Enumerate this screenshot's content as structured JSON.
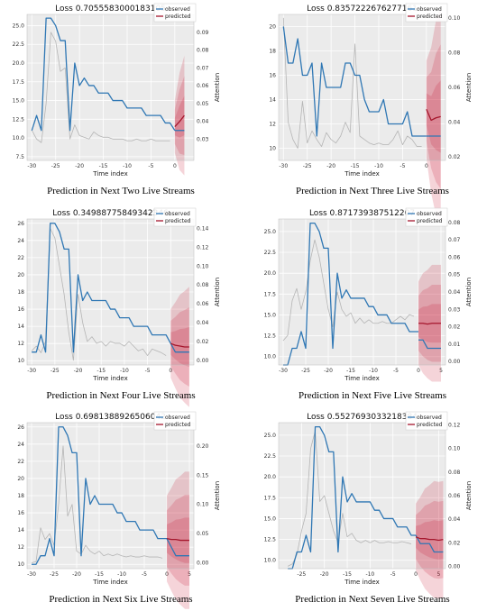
{
  "chart_data": [
    {
      "type": "line",
      "title": "Loss 0.7055583000183105",
      "caption": "Prediction in Next Two Live Streams",
      "xlabel": "Time index",
      "y2label": "Attention",
      "xlim": [
        -31,
        4
      ],
      "ylim": [
        7,
        26.5
      ],
      "y2lim": [
        0.018,
        0.1
      ],
      "xticks": [
        -30,
        -25,
        -20,
        -15,
        -10,
        -5,
        0
      ],
      "yticks": [
        7.5,
        10.0,
        12.5,
        15.0,
        17.5,
        20.0,
        22.5,
        25.0
      ],
      "y2ticks": [
        0.03,
        0.04,
        0.05,
        0.06,
        0.07,
        0.08,
        0.09
      ],
      "legend": [
        "observed",
        "predicted"
      ],
      "observed": {
        "x": [
          -30,
          -29,
          -28,
          -27,
          -26,
          -25,
          -24,
          -23,
          -22,
          -21,
          -20,
          -19,
          -18,
          -17,
          -16,
          -15,
          -14,
          -13,
          -12,
          -11,
          -10,
          -9,
          -8,
          -7,
          -6,
          -5,
          -4,
          -3,
          -2,
          -1,
          0
        ],
        "y": [
          11,
          13,
          11,
          26,
          26,
          25,
          23,
          23,
          11,
          20,
          17,
          18,
          17,
          17,
          16,
          16,
          16,
          15,
          15,
          15,
          14,
          14,
          14,
          14,
          13,
          13,
          13,
          13,
          12,
          12,
          11
        ]
      },
      "attention": {
        "x": [
          -30,
          -29,
          -28,
          -27,
          -26,
          -25,
          -24,
          -23,
          -22,
          -21,
          -20,
          -19,
          -18,
          -17,
          -16,
          -15,
          -14,
          -13,
          -12,
          -11,
          -10,
          -9,
          -8,
          -7,
          -6,
          -5,
          -4,
          -3,
          -2,
          -1
        ],
        "y": [
          0.035,
          0.03,
          0.028,
          0.05,
          0.09,
          0.085,
          0.068,
          0.07,
          0.03,
          0.038,
          0.032,
          0.031,
          0.03,
          0.034,
          0.032,
          0.031,
          0.031,
          0.03,
          0.03,
          0.03,
          0.029,
          0.029,
          0.03,
          0.029,
          0.029,
          0.03,
          0.029,
          0.029,
          0.029,
          0.029
        ]
      },
      "observed_future": {
        "x": [
          0,
          1,
          2
        ],
        "y": [
          11,
          11,
          11
        ]
      },
      "predicted": {
        "x": [
          0,
          1,
          2
        ],
        "y": [
          11.5,
          12.2,
          13
        ]
      },
      "band_width": [
        3.5,
        6.5,
        8
      ]
    },
    {
      "type": "line",
      "title": "Loss 0.8357222676277161",
      "caption": "Prediction in Next Three Live Streams",
      "xlabel": "Time index",
      "y2label": "Attention",
      "xlim": [
        -31,
        4
      ],
      "ylim": [
        9,
        21
      ],
      "y2lim": [
        0.018,
        0.102
      ],
      "xticks": [
        -30,
        -25,
        -20,
        -15,
        -10,
        -5,
        0
      ],
      "yticks": [
        10,
        12,
        14,
        16,
        18,
        20
      ],
      "y2ticks": [
        0.02,
        0.04,
        0.06,
        0.08,
        0.1
      ],
      "legend": [
        "observed",
        "predicted"
      ],
      "observed": {
        "x": [
          -30,
          -29,
          -28,
          -27,
          -26,
          -25,
          -24,
          -23,
          -22,
          -21,
          -20,
          -19,
          -18,
          -17,
          -16,
          -15,
          -14,
          -13,
          -12,
          -11,
          -10,
          -9,
          -8,
          -7,
          -6,
          -5,
          -4,
          -3,
          -2,
          -1,
          0
        ],
        "y": [
          20,
          17,
          17,
          19,
          16,
          16,
          17,
          11,
          17,
          15,
          15,
          15,
          15,
          17,
          17,
          16,
          16,
          14,
          13,
          13,
          13,
          14,
          12,
          12,
          12,
          12,
          13,
          11,
          11,
          11,
          11
        ]
      },
      "attention": {
        "x": [
          -30,
          -29,
          -28,
          -27,
          -26,
          -25,
          -24,
          -23,
          -22,
          -21,
          -20,
          -19,
          -18,
          -17,
          -16,
          -15,
          -14,
          -13,
          -12,
          -11,
          -10,
          -9,
          -8,
          -7,
          -6,
          -5,
          -4,
          -3,
          -2,
          -1
        ],
        "y": [
          0.1,
          0.04,
          0.03,
          0.025,
          0.052,
          0.028,
          0.035,
          0.03,
          0.026,
          0.034,
          0.03,
          0.028,
          0.032,
          0.04,
          0.034,
          0.085,
          0.032,
          0.03,
          0.028,
          0.027,
          0.028,
          0.027,
          0.027,
          0.03,
          0.035,
          0.027,
          0.032,
          0.03,
          0.026,
          0.026
        ]
      },
      "observed_future": {
        "x": [
          0,
          1,
          2,
          3
        ],
        "y": [
          11,
          11,
          11,
          11
        ]
      },
      "predicted": {
        "x": [
          0,
          1,
          2,
          3
        ],
        "y": [
          13.2,
          12.3,
          12.5,
          12.6
        ]
      },
      "band_width": [
        4,
        6,
        8,
        9
      ]
    },
    {
      "type": "line",
      "title": "Loss 0.34988775849342346",
      "caption": "Prediction in Next Four Live Streams",
      "xlabel": "Time index",
      "y2label": "Attention",
      "xlim": [
        -31,
        5
      ],
      "ylim": [
        9.5,
        26.5
      ],
      "y2lim": [
        -0.005,
        0.15
      ],
      "xticks": [
        -30,
        -25,
        -20,
        -15,
        -10,
        -5,
        0
      ],
      "yticks": [
        10,
        12,
        14,
        16,
        18,
        20,
        22,
        24,
        26
      ],
      "y2ticks": [
        0.0,
        0.02,
        0.04,
        0.06,
        0.08,
        0.1,
        0.12,
        0.14
      ],
      "legend": [
        "observed",
        "predicted"
      ],
      "observed": {
        "x": [
          -30,
          -29,
          -28,
          -27,
          -26,
          -25,
          -24,
          -23,
          -22,
          -21,
          -20,
          -19,
          -18,
          -17,
          -16,
          -15,
          -14,
          -13,
          -12,
          -11,
          -10,
          -9,
          -8,
          -7,
          -6,
          -5,
          -4,
          -3,
          -2,
          -1,
          0
        ],
        "y": [
          11,
          11,
          13,
          11,
          26,
          26,
          25,
          23,
          23,
          11,
          20,
          17,
          18,
          17,
          17,
          17,
          17,
          16,
          16,
          15,
          15,
          15,
          14,
          14,
          14,
          14,
          13,
          13,
          13,
          13,
          12
        ]
      },
      "attention": {
        "x": [
          -30,
          -29,
          -28,
          -27,
          -26,
          -25,
          -24,
          -23,
          -22,
          -21,
          -20,
          -19,
          -18,
          -17,
          -16,
          -15,
          -14,
          -13,
          -12,
          -11,
          -10,
          -9,
          -8,
          -7,
          -6,
          -5,
          -4,
          -3,
          -2,
          -1
        ],
        "y": [
          0.01,
          0.015,
          0.008,
          0.02,
          0.14,
          0.13,
          0.1,
          0.07,
          0.03,
          0.0,
          0.07,
          0.04,
          0.02,
          0.025,
          0.018,
          0.02,
          0.015,
          0.02,
          0.018,
          0.018,
          0.015,
          0.02,
          0.015,
          0.01,
          0.012,
          0.005,
          0.012,
          0.01,
          0.008,
          0.005
        ]
      },
      "observed_future": {
        "x": [
          0,
          1,
          2,
          3,
          4
        ],
        "y": [
          12,
          11,
          11,
          11,
          11
        ]
      },
      "predicted": {
        "x": [
          0,
          1,
          2,
          3,
          4
        ],
        "y": [
          12,
          11.8,
          11.7,
          11.6,
          11.6
        ]
      },
      "band_width": [
        4,
        5,
        6,
        6.5,
        7
      ]
    },
    {
      "type": "line",
      "title": "Loss 0.871739387512207",
      "caption": "Prediction in Next Five Live Streams",
      "xlabel": "Time index",
      "y2label": "Attention",
      "xlim": [
        -31,
        6
      ],
      "ylim": [
        9,
        26.5
      ],
      "y2lim": [
        -0.002,
        0.082
      ],
      "xticks": [
        -30,
        -25,
        -20,
        -15,
        -10,
        -5,
        0,
        5
      ],
      "yticks": [
        10.0,
        12.5,
        15.0,
        17.5,
        20.0,
        22.5,
        25.0
      ],
      "y2ticks": [
        0.0,
        0.01,
        0.02,
        0.03,
        0.04,
        0.05,
        0.06,
        0.07,
        0.08
      ],
      "legend": [
        "observed",
        "predicted"
      ],
      "observed": {
        "x": [
          -30,
          -29,
          -28,
          -27,
          -26,
          -25,
          -24,
          -23,
          -22,
          -21,
          -20,
          -19,
          -18,
          -17,
          -16,
          -15,
          -14,
          -13,
          -12,
          -11,
          -10,
          -9,
          -8,
          -7,
          -6,
          -5,
          -4,
          -3,
          -2,
          -1,
          0
        ],
        "y": [
          9,
          9,
          11,
          11,
          13,
          11,
          26,
          26,
          25,
          23,
          23,
          11,
          20,
          17,
          18,
          17,
          17,
          17,
          17,
          16,
          16,
          15,
          15,
          15,
          14,
          14,
          14,
          14,
          13,
          13,
          13
        ]
      },
      "attention": {
        "x": [
          -30,
          -29,
          -28,
          -27,
          -26,
          -25,
          -24,
          -23,
          -22,
          -21,
          -20,
          -19,
          -18,
          -17,
          -16,
          -15,
          -14,
          -13,
          -12,
          -11,
          -10,
          -9,
          -8,
          -7,
          -6,
          -5,
          -4,
          -3,
          -2,
          -1
        ],
        "y": [
          0.012,
          0.015,
          0.035,
          0.042,
          0.03,
          0.04,
          0.058,
          0.07,
          0.06,
          0.045,
          0.03,
          0.02,
          0.04,
          0.03,
          0.026,
          0.028,
          0.022,
          0.025,
          0.022,
          0.024,
          0.022,
          0.022,
          0.023,
          0.022,
          0.022,
          0.024,
          0.026,
          0.024,
          0.027,
          0.026
        ]
      },
      "observed_future": {
        "x": [
          0,
          1,
          2,
          3,
          4,
          5
        ],
        "y": [
          12,
          12,
          11,
          11,
          11,
          11
        ]
      },
      "predicted": {
        "x": [
          0,
          1,
          2,
          3,
          4,
          5
        ],
        "y": [
          14,
          14,
          13.9,
          14,
          14,
          14
        ]
      },
      "band_width": [
        5,
        6,
        6.5,
        7,
        7,
        7
      ]
    },
    {
      "type": "line",
      "title": "Loss 0.6981388926506042",
      "caption": "Prediction in Next Six Live Streams",
      "xlabel": "Time index",
      "y2label": "Attention",
      "xlim": [
        -31,
        6
      ],
      "ylim": [
        9.5,
        26.5
      ],
      "y2lim": [
        -0.01,
        0.24
      ],
      "xticks": [
        -30,
        -25,
        -20,
        -15,
        -10,
        -5,
        0,
        5
      ],
      "yticks": [
        10,
        12,
        14,
        16,
        18,
        20,
        22,
        24,
        26
      ],
      "y2ticks": [
        0.0,
        0.05,
        0.1,
        0.15,
        0.2
      ],
      "legend": [
        "observed",
        "predicted"
      ],
      "observed": {
        "x": [
          -30,
          -29,
          -28,
          -27,
          -26,
          -25,
          -24,
          -23,
          -22,
          -21,
          -20,
          -19,
          -18,
          -17,
          -16,
          -15,
          -14,
          -13,
          -12,
          -11,
          -10,
          -9,
          -8,
          -7,
          -6,
          -5,
          -4,
          -3,
          -2,
          -1,
          0
        ],
        "y": [
          10,
          10,
          11,
          11,
          13,
          11,
          26,
          26,
          25,
          23,
          23,
          11,
          20,
          17,
          18,
          17,
          17,
          17,
          17,
          16,
          16,
          15,
          15,
          15,
          14,
          14,
          14,
          14,
          13,
          13,
          13
        ]
      },
      "attention": {
        "x": [
          -30,
          -29,
          -28,
          -27,
          -26,
          -25,
          -24,
          -23,
          -22,
          -21,
          -20,
          -19,
          -18,
          -17,
          -16,
          -15,
          -14,
          -13,
          -12,
          -11,
          -10,
          -9,
          -8,
          -7,
          -6,
          -5,
          -4,
          -3,
          -2,
          -1
        ],
        "y": [
          0.0,
          0.002,
          0.06,
          0.04,
          0.05,
          0.03,
          0.1,
          0.2,
          0.08,
          0.1,
          0.02,
          0.015,
          0.03,
          0.02,
          0.015,
          0.02,
          0.012,
          0.015,
          0.012,
          0.015,
          0.012,
          0.01,
          0.012,
          0.01,
          0.01,
          0.012,
          0.01,
          0.01,
          0.01,
          0.008
        ]
      },
      "observed_future": {
        "x": [
          0,
          1,
          2,
          3,
          4,
          5
        ],
        "y": [
          13,
          12,
          11,
          11,
          11,
          11
        ]
      },
      "predicted": {
        "x": [
          0,
          1,
          2,
          3,
          4,
          5
        ],
        "y": [
          13,
          12.9,
          12.9,
          12.8,
          12.8,
          12.8
        ]
      },
      "band_width": [
        5,
        6,
        7,
        7.5,
        8,
        8
      ]
    },
    {
      "type": "line",
      "title": "Loss 0.5527693033218384",
      "caption": "Prediction in Next Seven Live Streams",
      "xlabel": "Time index",
      "y2label": "Attention",
      "xlim": [
        -30,
        6.5
      ],
      "ylim": [
        9,
        26.5
      ],
      "y2lim": [
        -0.002,
        0.122
      ],
      "xticks": [
        -25,
        -20,
        -15,
        -10,
        -5,
        0,
        5
      ],
      "yticks": [
        10.0,
        12.5,
        15.0,
        17.5,
        20.0,
        22.5,
        25.0
      ],
      "y2ticks": [
        0.0,
        0.02,
        0.04,
        0.06,
        0.08,
        0.1,
        0.12
      ],
      "legend": [
        "observed",
        "predicted"
      ],
      "observed": {
        "x": [
          -28,
          -27,
          -26,
          -25,
          -24,
          -23,
          -22,
          -21,
          -20,
          -19,
          -18,
          -17,
          -16,
          -15,
          -14,
          -13,
          -12,
          -11,
          -10,
          -9,
          -8,
          -7,
          -6,
          -5,
          -4,
          -3,
          -2,
          -1,
          0
        ],
        "y": [
          9,
          9,
          11,
          11,
          13,
          11,
          26,
          26,
          25,
          23,
          23,
          11,
          20,
          17,
          18,
          17,
          17,
          17,
          17,
          16,
          16,
          15,
          15,
          15,
          14,
          14,
          14,
          13,
          13
        ]
      },
      "attention": {
        "x": [
          -28,
          -27,
          -26,
          -25,
          -24,
          -23,
          -22,
          -21,
          -20,
          -19,
          -18,
          -17,
          -16,
          -15,
          -14,
          -13,
          -12,
          -11,
          -10,
          -9,
          -8,
          -7,
          -6,
          -5,
          -4,
          -3,
          -2,
          -1
        ],
        "y": [
          0.0,
          0.002,
          0.01,
          0.03,
          0.045,
          0.1,
          0.115,
          0.055,
          0.06,
          0.045,
          0.03,
          0.02,
          0.045,
          0.025,
          0.028,
          0.022,
          0.02,
          0.022,
          0.02,
          0.022,
          0.02,
          0.02,
          0.021,
          0.02,
          0.02,
          0.021,
          0.02,
          0.019
        ]
      },
      "observed_future": {
        "x": [
          0,
          1,
          2,
          3,
          4,
          5,
          6
        ],
        "y": [
          13,
          12,
          12,
          12,
          11,
          11,
          11
        ]
      },
      "predicted": {
        "x": [
          0,
          1,
          2,
          3,
          4,
          5,
          6
        ],
        "y": [
          12.8,
          12.6,
          12.6,
          12.5,
          12.5,
          12.4,
          12.5
        ]
      },
      "band_width": [
        4,
        5,
        6,
        6.5,
        7,
        7,
        7
      ]
    }
  ],
  "colors": {
    "observed": "#2f77b4",
    "predicted": "#a5172d",
    "attention": "#b5b5b5",
    "band": "#c8102e"
  }
}
